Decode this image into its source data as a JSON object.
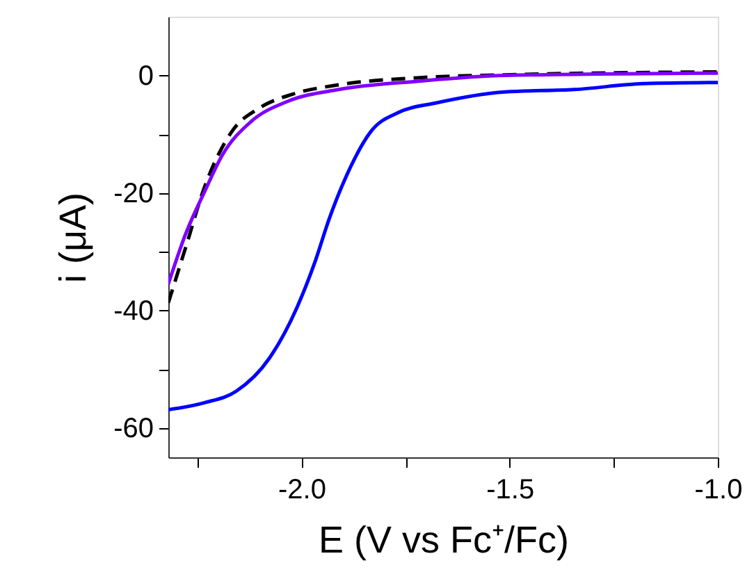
{
  "chart_data": {
    "type": "line",
    "xlabel": "E (V vs Fc⁺/Fc)",
    "ylabel": "i (μA)",
    "xlim": [
      -2.32,
      -1.0
    ],
    "xticks": [
      {
        "value": -2.25,
        "label": null
      },
      {
        "value": -2.0,
        "label": "-2.0"
      },
      {
        "value": -1.75,
        "label": null
      },
      {
        "value": -1.5,
        "label": "-1.5"
      },
      {
        "value": -1.25,
        "label": null
      },
      {
        "value": -1.0,
        "label": "-1.0"
      }
    ],
    "ylim": [
      -65,
      10
    ],
    "yticks": [
      {
        "value": -60,
        "label": "-60"
      },
      {
        "value": -50,
        "label": null
      },
      {
        "value": -40,
        "label": "-40"
      },
      {
        "value": -30,
        "label": null
      },
      {
        "value": -20,
        "label": "-20"
      },
      {
        "value": -10,
        "label": null
      },
      0
    ],
    "grid": false,
    "marker": "none",
    "series": [
      {
        "color": "#0000ff",
        "line_style": "solid",
        "x": [
          -2.32,
          -2.233,
          -2.156,
          -2.078,
          -2.011,
          -1.967,
          -1.934,
          -1.889,
          -1.833,
          -1.767,
          -1.678,
          -1.511,
          -1.345,
          -1.178,
          -1.0
        ],
        "values": [
          -56.9,
          -55.7,
          -53.7,
          -48.2,
          -39.5,
          -31.6,
          -24.5,
          -16.6,
          -9.5,
          -6.3,
          -4.7,
          -2.8,
          -2.4,
          -1.4,
          -1.2
        ]
      },
      {
        "color": "#000000",
        "line_style": "dashed",
        "x": [
          -2.32,
          -2.278,
          -2.233,
          -2.167,
          -2.1,
          -2.022,
          -1.911,
          -1.722,
          -1.511,
          -1.0
        ],
        "values": [
          -38.7,
          -29.2,
          -19.0,
          -9.5,
          -5.5,
          -3.2,
          -1.6,
          -0.4,
          0.1,
          0.6
        ]
      },
      {
        "color": "#8000ff",
        "line_style": "solid",
        "x": [
          -2.32,
          -2.278,
          -2.233,
          -2.189,
          -2.122,
          -2.033,
          -1.911,
          -1.722,
          -1.511,
          -1.0
        ],
        "values": [
          -35.5,
          -26.9,
          -19.8,
          -13.4,
          -7.9,
          -4.4,
          -2.4,
          -1.0,
          0.0,
          0.4
        ]
      }
    ]
  }
}
